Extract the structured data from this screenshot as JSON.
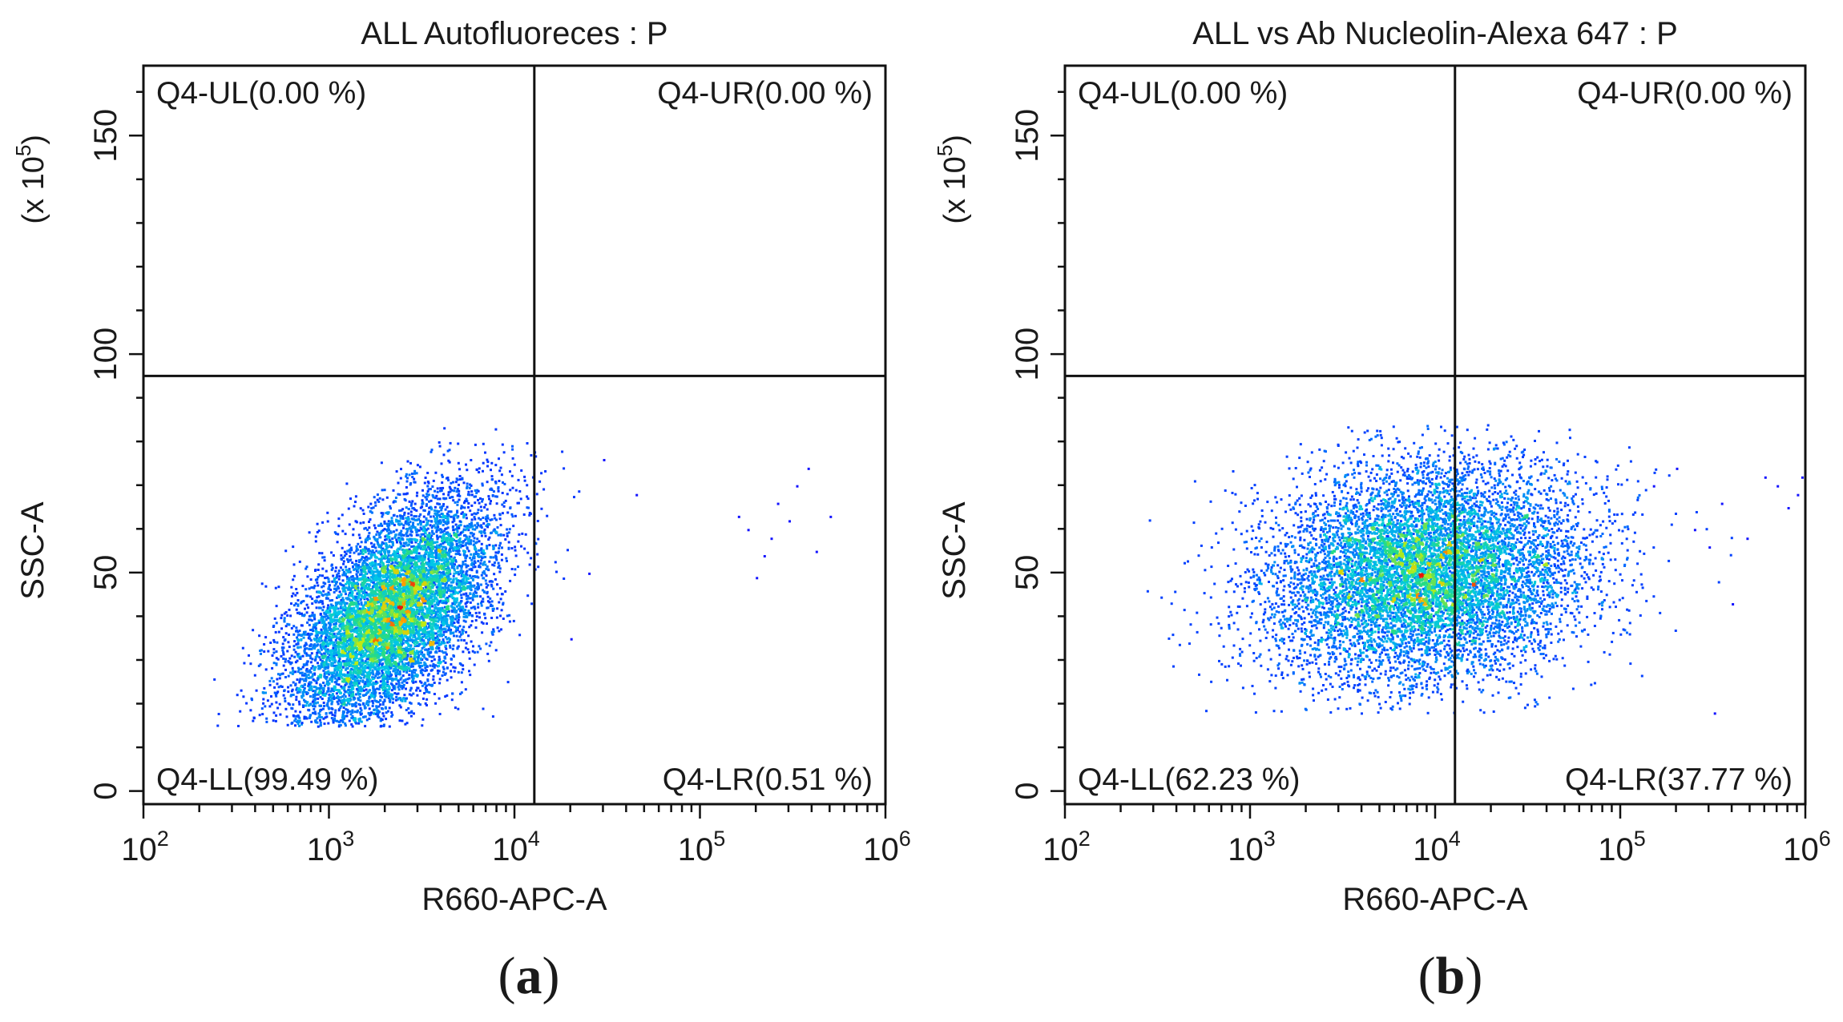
{
  "chart_data": [
    {
      "type": "scatter",
      "subtype": "flow-cytometry-density-dot-plot",
      "panel_label": "a",
      "title": "ALL Autofluoreces : P",
      "xlabel": "R660-APC-A",
      "ylabel": "SSC-A",
      "y_multiplier": "(x 10",
      "y_multiplier_exp": "5",
      "y_multiplier_close": ")",
      "x_scale": "log",
      "xlim": [
        100,
        1000000
      ],
      "ylim": [
        -3,
        166
      ],
      "x_ticks": [
        {
          "base": "10",
          "exp": "2"
        },
        {
          "base": "10",
          "exp": "3"
        },
        {
          "base": "10",
          "exp": "4"
        },
        {
          "base": "10",
          "exp": "5"
        },
        {
          "base": "10",
          "exp": "6"
        }
      ],
      "y_ticks": [
        "0",
        "50",
        "100",
        "150"
      ],
      "y_tick_values": [
        0,
        50,
        100,
        150
      ],
      "gate": {
        "x": 12800,
        "y": 95
      },
      "quadrants": {
        "UL": "Q4-UL(0.00 %)",
        "UR": "Q4-UR(0.00 %)",
        "LL": "Q4-LL(99.49 %)",
        "LR": "Q4-LR(0.51 %)"
      },
      "population": {
        "center_log10_x": 3.33,
        "center_y": 41,
        "sd_log10_x": 0.27,
        "sd_y": 13,
        "correlation": 0.55,
        "y_min": 15,
        "y_max": 84
      },
      "outliers": [
        [
          30000,
          76
        ],
        [
          45000,
          68
        ],
        [
          160000,
          63
        ],
        [
          180000,
          60
        ],
        [
          200000,
          49
        ],
        [
          240000,
          58
        ],
        [
          260000,
          66
        ],
        [
          300000,
          62
        ],
        [
          330000,
          70
        ],
        [
          380000,
          74
        ],
        [
          420000,
          55
        ],
        [
          500000,
          63
        ],
        [
          220000,
          54
        ],
        [
          20000,
          35
        ],
        [
          25000,
          50
        ]
      ]
    },
    {
      "type": "scatter",
      "subtype": "flow-cytometry-density-dot-plot",
      "panel_label": "b",
      "title": "ALL vs Ab Nucleolin-Alexa 647 : P",
      "xlabel": "R660-APC-A",
      "ylabel": "SSC-A",
      "y_multiplier": "(x 10",
      "y_multiplier_exp": "5",
      "y_multiplier_close": ")",
      "x_scale": "log",
      "xlim": [
        100,
        1000000
      ],
      "ylim": [
        -3,
        166
      ],
      "x_ticks": [
        {
          "base": "10",
          "exp": "2"
        },
        {
          "base": "10",
          "exp": "3"
        },
        {
          "base": "10",
          "exp": "4"
        },
        {
          "base": "10",
          "exp": "5"
        },
        {
          "base": "10",
          "exp": "6"
        }
      ],
      "y_ticks": [
        "0",
        "50",
        "100",
        "150"
      ],
      "y_tick_values": [
        0,
        50,
        100,
        150
      ],
      "gate": {
        "x": 12800,
        "y": 95
      },
      "quadrants": {
        "UL": "Q4-UL(0.00 %)",
        "UR": "Q4-UR(0.00 %)",
        "LL": "Q4-LL(62.23 %)",
        "LR": "Q4-LR(37.77 %)"
      },
      "population": {
        "center_log10_x": 3.95,
        "center_y": 50,
        "sd_log10_x": 0.42,
        "sd_y": 12,
        "correlation": 0.15,
        "y_min": 18,
        "y_max": 84
      },
      "outliers": [
        [
          150000,
          70
        ],
        [
          200000,
          74
        ],
        [
          250000,
          60
        ],
        [
          300000,
          56
        ],
        [
          320000,
          18
        ],
        [
          400000,
          43
        ],
        [
          480000,
          58
        ],
        [
          600000,
          72
        ],
        [
          700000,
          70
        ],
        [
          800000,
          65
        ],
        [
          900000,
          68
        ],
        [
          950000,
          72
        ],
        [
          350000,
          66
        ]
      ]
    }
  ]
}
